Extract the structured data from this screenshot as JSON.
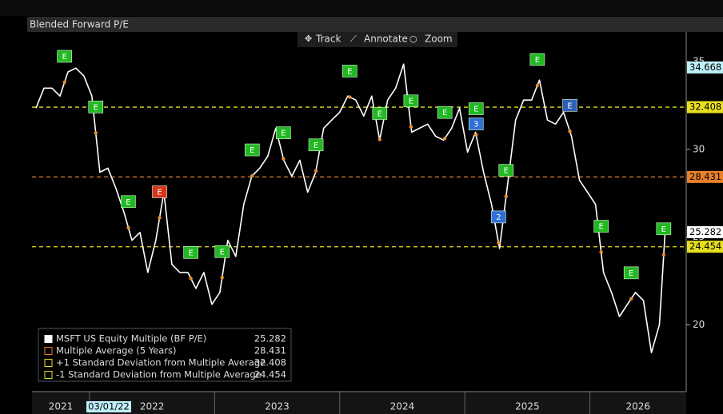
{
  "chart_data": {
    "type": "line",
    "title": "Blended Forward P/E",
    "toolbar": [
      "Track",
      "Annotate",
      "Zoom"
    ],
    "x": [
      2021.572,
      2021.636,
      2021.7,
      2021.764,
      2021.827,
      2021.891,
      2021.955,
      2022.019,
      2022.083,
      2022.147,
      2022.211,
      2022.275,
      2022.339,
      2022.403,
      2022.466,
      2022.53,
      2022.594,
      2022.658,
      2022.722,
      2022.786,
      2022.85,
      2022.914,
      2022.978,
      2023.042,
      2023.105,
      2023.169,
      2023.233,
      2023.297,
      2023.361,
      2023.425,
      2023.489,
      2023.553,
      2023.617,
      2023.681,
      2023.744,
      2023.808,
      2023.872,
      2023.936,
      2024.0,
      2024.064,
      2024.128,
      2024.192,
      2024.256,
      2024.319,
      2024.383,
      2024.447,
      2024.511,
      2024.575,
      2024.639,
      2024.703,
      2024.767,
      2024.831,
      2024.895,
      2024.958,
      2025.022,
      2025.086,
      2025.15,
      2025.214,
      2025.278,
      2025.342,
      2025.406,
      2025.47,
      2025.534,
      2025.597,
      2025.661,
      2025.725,
      2025.789,
      2025.853,
      2025.917,
      2025.981,
      2026.045,
      2026.109,
      2026.173,
      2026.236,
      2026.3,
      2026.364,
      2026.428,
      2026.492,
      2026.556,
      2026.601
    ],
    "series": [
      {
        "name": "MSFT US Equity Multiple (BF P/E)",
        "color": "#ffffff",
        "values": [
          32.35,
          33.49,
          33.49,
          33.04,
          34.41,
          34.63,
          34.18,
          33.04,
          28.7,
          28.93,
          27.79,
          26.42,
          24.82,
          25.27,
          22.99,
          24.82,
          27.56,
          23.45,
          22.99,
          22.99,
          22.08,
          22.99,
          21.17,
          21.85,
          24.82,
          23.9,
          26.87,
          28.47,
          28.93,
          29.61,
          31.21,
          29.38,
          28.47,
          29.38,
          27.56,
          28.7,
          31.21,
          31.67,
          32.12,
          33.04,
          32.81,
          31.9,
          33.04,
          30.53,
          32.81,
          33.49,
          34.86,
          30.98,
          31.21,
          31.44,
          30.75,
          30.53,
          31.21,
          32.35,
          29.84,
          30.98,
          28.7,
          26.87,
          24.36,
          28.01,
          31.67,
          32.81,
          32.81,
          33.95,
          31.67,
          31.44,
          32.12,
          30.75,
          28.24,
          27.56,
          26.87,
          22.99,
          21.85,
          20.48,
          21.17,
          21.85,
          21.39,
          18.42,
          20.02,
          25.282
        ]
      }
    ],
    "reference_lines": [
      {
        "name": "Multiple Average (5 Years)",
        "value": 28.431,
        "color": "#e8802a"
      },
      {
        "name": "+1 Standard Deviation from Multiple Average",
        "value": 32.408,
        "color": "#e6e01e"
      },
      {
        "name": "-1 Standard Deviation from Multiple Average",
        "value": 24.454,
        "color": "#e6e01e"
      }
    ],
    "events": [
      {
        "x": 2021.8,
        "label": "E",
        "color": "#22b822"
      },
      {
        "x": 2022.05,
        "label": "E",
        "color": "#22b822"
      },
      {
        "x": 2022.31,
        "label": "E",
        "color": "#22b822"
      },
      {
        "x": 2022.56,
        "label": "E",
        "color": "#d8341a"
      },
      {
        "x": 2022.81,
        "label": "E",
        "color": "#22b822"
      },
      {
        "x": 2023.06,
        "label": "E",
        "color": "#22b822"
      },
      {
        "x": 2023.3,
        "label": "E",
        "color": "#22b822"
      },
      {
        "x": 2023.55,
        "label": "E",
        "color": "#22b822"
      },
      {
        "x": 2023.81,
        "label": "E",
        "color": "#22b822"
      },
      {
        "x": 2024.08,
        "label": "E",
        "color": "#22b822"
      },
      {
        "x": 2024.32,
        "label": "E",
        "color": "#22b822"
      },
      {
        "x": 2024.57,
        "label": "E",
        "color": "#22b822"
      },
      {
        "x": 2024.84,
        "label": "E",
        "color": "#22b822"
      },
      {
        "x": 2025.09,
        "label": "E",
        "color": "#22b822"
      },
      {
        "x": 2025.09,
        "label": "3",
        "color": "#2f6fd8"
      },
      {
        "x": 2025.27,
        "label": "2",
        "color": "#2f6fd8"
      },
      {
        "x": 2025.33,
        "label": "E",
        "color": "#22b822"
      },
      {
        "x": 2025.58,
        "label": "E",
        "color": "#22b822"
      },
      {
        "x": 2025.84,
        "label": "E",
        "color": "#2f5fb8"
      },
      {
        "x": 2026.09,
        "label": "E",
        "color": "#22b822"
      },
      {
        "x": 2026.33,
        "label": "E",
        "color": "#22b822"
      },
      {
        "x": 2026.59,
        "label": "E",
        "color": "#22b822"
      }
    ],
    "cursor": {
      "date_label": "03/01/22",
      "value": 34.668
    },
    "xlim": [
      2021.54,
      2026.77
    ],
    "xticks": [
      2021,
      2022,
      2023,
      2024,
      2025,
      2026
    ],
    "ylim": [
      16.2,
      36.69
    ],
    "yticks": [
      20,
      25,
      30,
      35
    ]
  }
}
